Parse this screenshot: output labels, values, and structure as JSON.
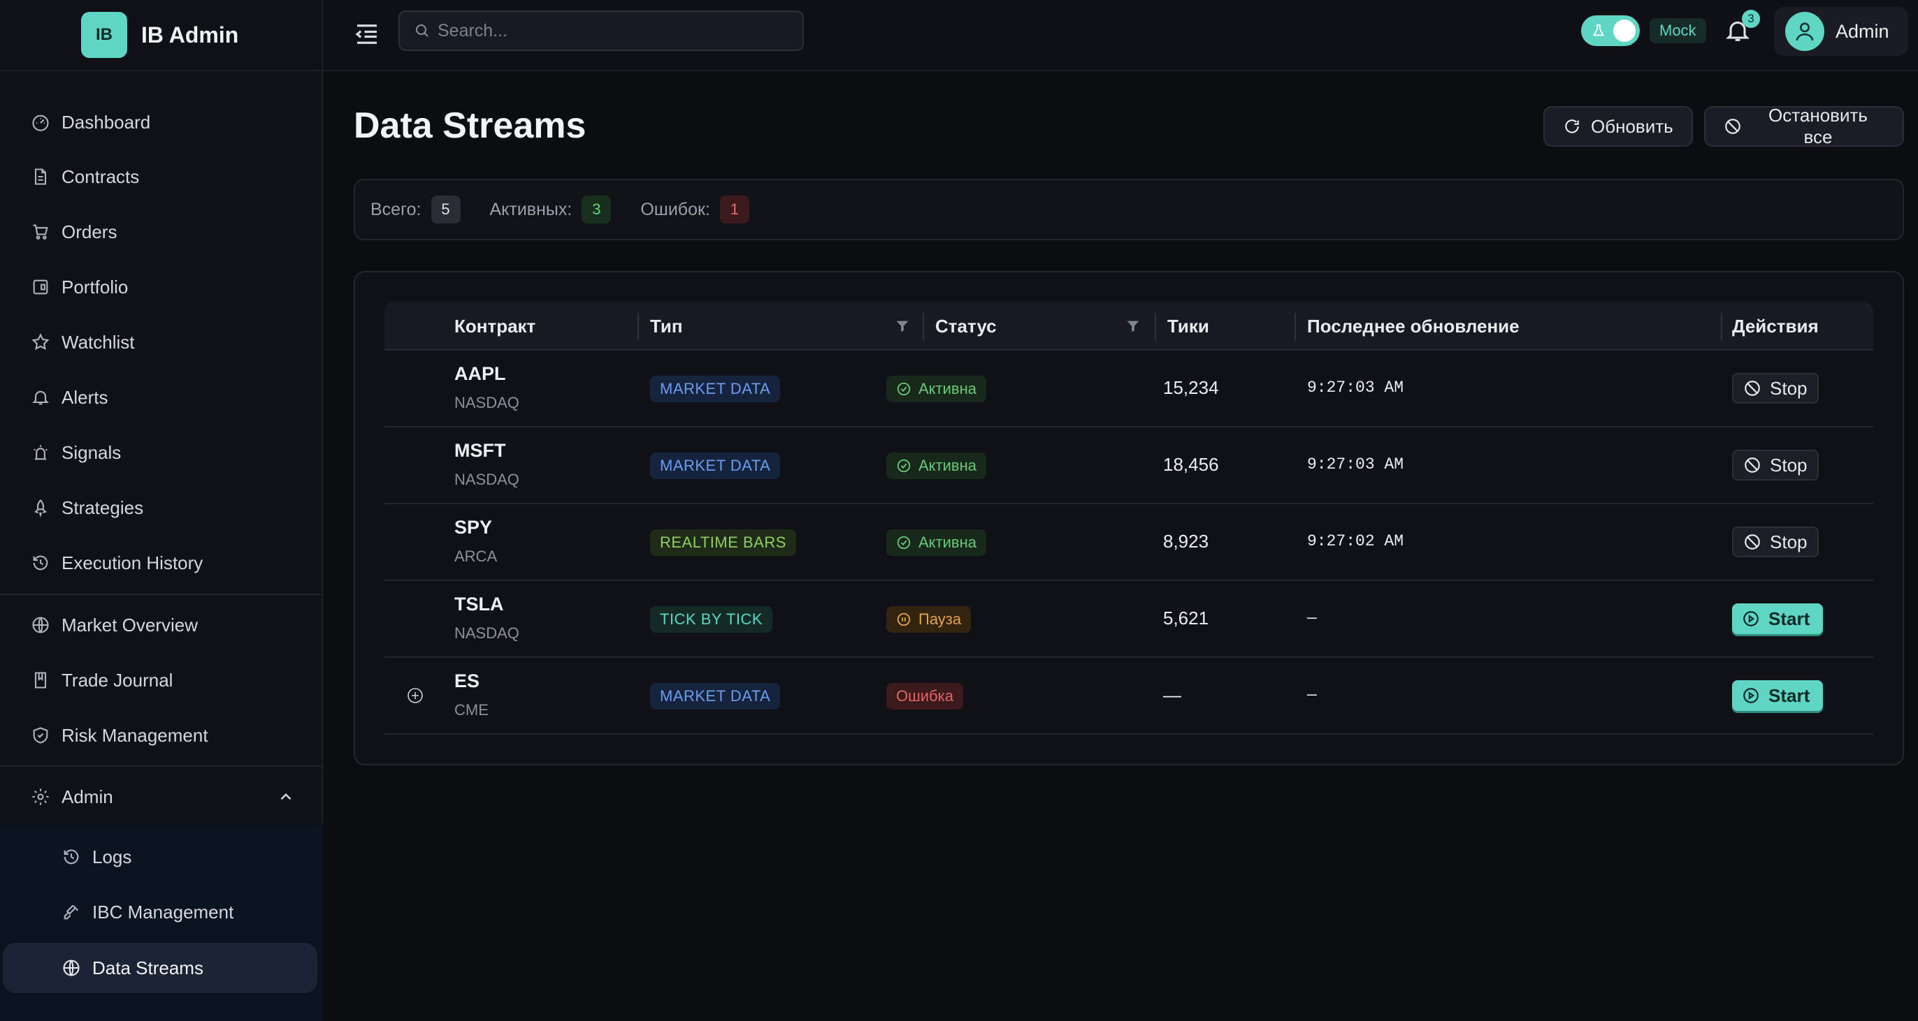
{
  "brand": {
    "logo": "IB",
    "title": "IB Admin"
  },
  "sidebar": {
    "items": [
      {
        "label": "Dashboard",
        "icon": "gauge-icon"
      },
      {
        "label": "Contracts",
        "icon": "file-icon"
      },
      {
        "label": "Orders",
        "icon": "cart-icon"
      },
      {
        "label": "Portfolio",
        "icon": "portfolio-icon"
      },
      {
        "label": "Watchlist",
        "icon": "star-icon"
      },
      {
        "label": "Alerts",
        "icon": "bell-icon"
      },
      {
        "label": "Signals",
        "icon": "signal-icon"
      },
      {
        "label": "Strategies",
        "icon": "rocket-icon"
      },
      {
        "label": "Execution History",
        "icon": "history-icon"
      },
      {
        "label": "Market Overview",
        "icon": "globe-icon"
      },
      {
        "label": "Trade Journal",
        "icon": "book-icon"
      },
      {
        "label": "Risk Management",
        "icon": "shield-icon"
      }
    ],
    "admin": {
      "label": "Admin",
      "expanded": true,
      "children": [
        {
          "label": "Logs",
          "icon": "history-icon"
        },
        {
          "label": "IBC Management",
          "icon": "plug-icon"
        },
        {
          "label": "Data Streams",
          "icon": "globe-icon",
          "active": true
        }
      ]
    }
  },
  "topbar": {
    "search_placeholder": "Search...",
    "mode_label": "Mock",
    "mock_enabled": true,
    "notifications": "3",
    "user": "Admin"
  },
  "page": {
    "title": "Data Streams",
    "refresh_label": "Обновить",
    "stop_all_label": "Остановить все"
  },
  "stats": {
    "total_label": "Всего:",
    "total": "5",
    "active_label": "Активных:",
    "active": "3",
    "errors_label": "Ошибок:",
    "errors": "1"
  },
  "table": {
    "columns": [
      "Контракт",
      "Тип",
      "Статус",
      "Тики",
      "Последнее обновление",
      "Действия"
    ],
    "rows": [
      {
        "symbol": "AAPL",
        "exchange": "NASDAQ",
        "type": "MARKET DATA",
        "status": "Активна",
        "ticks": "15,234",
        "updated": "9:27:03 AM",
        "action": "Stop"
      },
      {
        "symbol": "MSFT",
        "exchange": "NASDAQ",
        "type": "MARKET DATA",
        "status": "Активна",
        "ticks": "18,456",
        "updated": "9:27:03 AM",
        "action": "Stop"
      },
      {
        "symbol": "SPY",
        "exchange": "ARCA",
        "type": "REALTIME BARS",
        "status": "Активна",
        "ticks": "8,923",
        "updated": "9:27:02 AM",
        "action": "Stop"
      },
      {
        "symbol": "TSLA",
        "exchange": "NASDAQ",
        "type": "TICK BY TICK",
        "status": "Пауза",
        "ticks": "5,621",
        "updated": "—",
        "action": "Start"
      },
      {
        "symbol": "ES",
        "exchange": "CME",
        "type": "MARKET DATA",
        "status": "Ошибка",
        "ticks": "—",
        "updated": "—",
        "action": "Start"
      }
    ]
  },
  "colors": {
    "accent": "#5fd6c4",
    "background": "#0b0d11",
    "active": "#6bc77a",
    "pause": "#e5a34a",
    "error": "#e26565"
  }
}
